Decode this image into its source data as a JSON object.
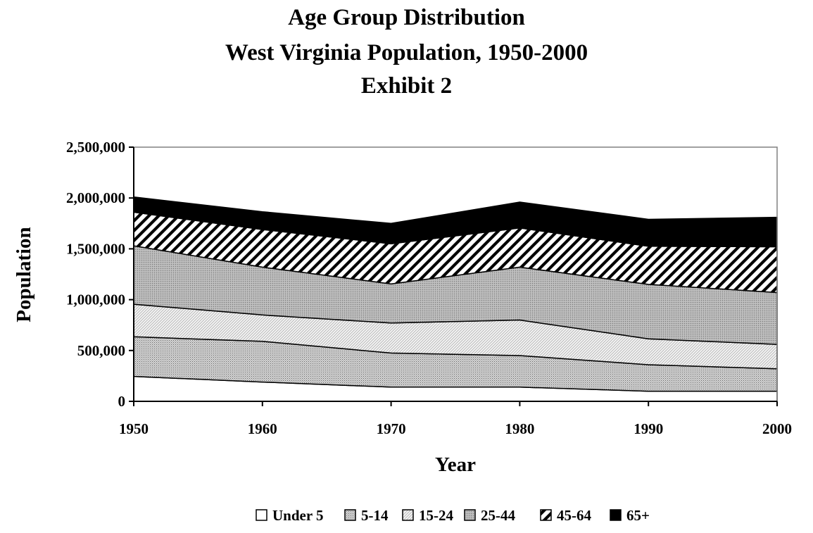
{
  "chart_data": {
    "type": "area",
    "stacked": true,
    "title": "Age Group Distribution",
    "subtitle_lines": [
      "West Virginia Population, 1950-2000",
      "Exhibit 2"
    ],
    "xlabel": "Year",
    "ylabel": "Population",
    "x": [
      1950,
      1960,
      1970,
      1980,
      1990,
      2000
    ],
    "x_tick_labels": [
      "1950",
      "1960",
      "1970",
      "1980",
      "1990",
      "2000"
    ],
    "ylim": [
      0,
      2500000
    ],
    "y_ticks": [
      0,
      500000,
      1000000,
      1500000,
      2000000,
      2500000
    ],
    "y_tick_labels": [
      "0",
      "500,000",
      "1,000,000",
      "1,500,000",
      "2,000,000",
      "2,500,000"
    ],
    "grid": false,
    "legend_position": "bottom",
    "series": [
      {
        "name": "Under 5",
        "values": [
          245000,
          190000,
          140000,
          140000,
          100000,
          100000
        ],
        "pattern": "white"
      },
      {
        "name": "5-14",
        "values": [
          390000,
          400000,
          335000,
          310000,
          260000,
          220000
        ],
        "pattern": "dense-dots"
      },
      {
        "name": "15-24",
        "values": [
          320000,
          260000,
          295000,
          350000,
          255000,
          240000
        ],
        "pattern": "fine-diagonal"
      },
      {
        "name": "25-44",
        "values": [
          575000,
          470000,
          385000,
          520000,
          535000,
          510000
        ],
        "pattern": "gray-dots"
      },
      {
        "name": "45-64",
        "values": [
          330000,
          370000,
          395000,
          385000,
          375000,
          450000
        ],
        "pattern": "bold-diagonal"
      },
      {
        "name": "65+",
        "values": [
          150000,
          175000,
          200000,
          255000,
          265000,
          290000
        ],
        "pattern": "black"
      }
    ]
  }
}
